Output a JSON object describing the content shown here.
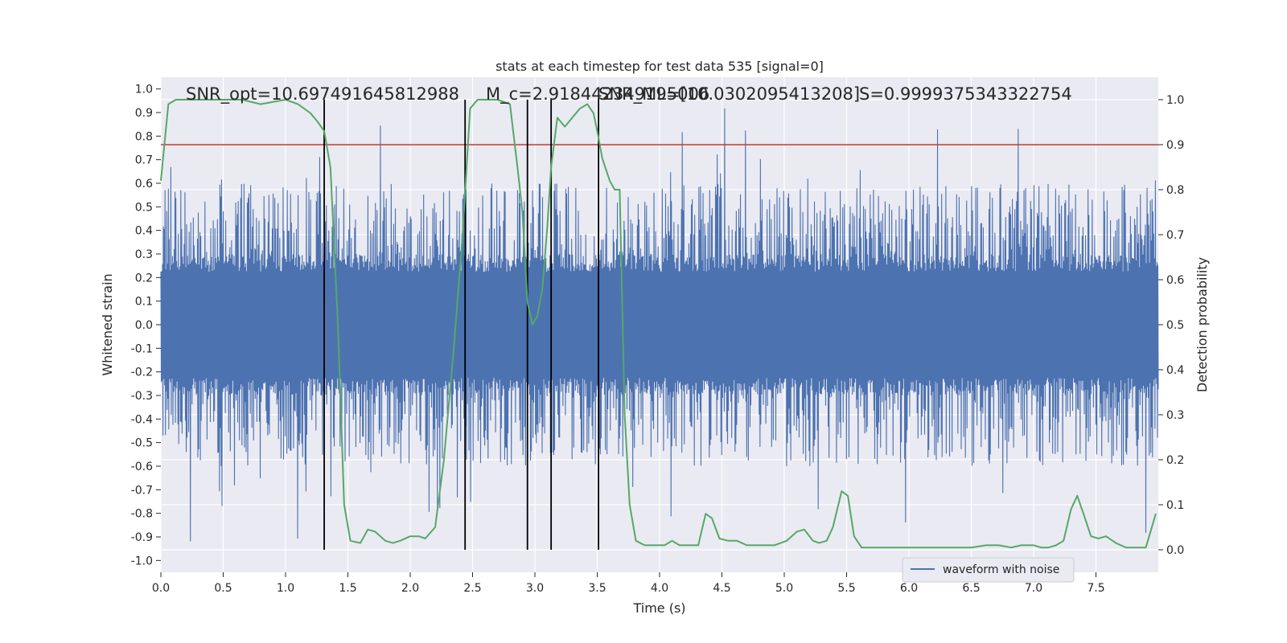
{
  "chart_data": {
    "type": "line",
    "title": "stats at each timestep for test data 535 [signal=0]",
    "xlabel": "Time (s)",
    "ylabel_left": "Whitened strain",
    "ylabel_right": "Detection probability",
    "xlim": [
      0,
      8
    ],
    "ylim_left": [
      -1.05,
      1.05
    ],
    "ylim_right": [
      -0.05,
      1.05
    ],
    "x_ticks": [
      "0.0",
      "0.5",
      "1.0",
      "1.5",
      "2.0",
      "2.5",
      "3.0",
      "3.5",
      "4.0",
      "4.5",
      "5.0",
      "5.5",
      "6.0",
      "6.5",
      "7.0",
      "7.5"
    ],
    "y_ticks_left": [
      "-1.0",
      "-0.9",
      "-0.8",
      "-0.7",
      "-0.6",
      "-0.5",
      "-0.4",
      "-0.3",
      "-0.2",
      "-0.1",
      "0.0",
      "0.1",
      "0.2",
      "0.3",
      "0.4",
      "0.5",
      "0.6",
      "0.7",
      "0.8",
      "0.9",
      "1.0"
    ],
    "y_ticks_right": [
      "0.0",
      "0.1",
      "0.2",
      "0.3",
      "0.4",
      "0.5",
      "0.6",
      "0.7",
      "0.8",
      "0.9",
      "1.0"
    ],
    "grid": true,
    "annotations": [
      "SNR_opt=10.697491645812988",
      "M_c=2.918442349195006",
      "SNR_ML=[10.0302095413208]",
      "S=0.9999375343322754"
    ],
    "threshold": {
      "value": 0.9,
      "axis": "right",
      "color": "#c0392b"
    },
    "vertical_lines": [
      1.31,
      2.44,
      2.94,
      3.13,
      3.51
    ],
    "series": [
      {
        "name": "waveform with noise",
        "axis": "left",
        "color": "#4c72b0",
        "envelope": {
          "core_amplitude": 0.3,
          "typical_peak_amplitude": 0.6,
          "max_peak_amplitude": 0.92
        }
      },
      {
        "axis": "right",
        "color": "#55a868",
        "x": [
          0.0,
          0.06,
          0.12,
          0.25,
          0.5,
          0.65,
          0.8,
          1.0,
          1.1,
          1.2,
          1.26,
          1.31,
          1.36,
          1.42,
          1.47,
          1.52,
          1.6,
          1.66,
          1.72,
          1.8,
          1.86,
          1.92,
          2.0,
          2.07,
          2.12,
          2.2,
          2.27,
          2.35,
          2.42,
          2.48,
          2.54,
          2.6,
          2.7,
          2.8,
          2.86,
          2.9,
          2.94,
          2.98,
          3.02,
          3.06,
          3.1,
          3.13,
          3.18,
          3.24,
          3.3,
          3.36,
          3.42,
          3.47,
          3.5,
          3.54,
          3.6,
          3.64,
          3.68,
          3.72,
          3.76,
          3.81,
          3.88,
          3.96,
          4.04,
          4.1,
          4.16,
          4.24,
          4.31,
          4.37,
          4.42,
          4.48,
          4.55,
          4.62,
          4.7,
          4.8,
          4.92,
          5.02,
          5.1,
          5.16,
          5.23,
          5.28,
          5.34,
          5.39,
          5.46,
          5.51,
          5.56,
          5.62,
          5.8,
          6.0,
          6.3,
          6.5,
          6.62,
          6.72,
          6.82,
          6.9,
          7.0,
          7.06,
          7.12,
          7.18,
          7.24,
          7.3,
          7.35,
          7.4,
          7.46,
          7.52,
          7.58,
          7.66,
          7.74,
          7.82,
          7.9,
          7.98
        ],
        "values": [
          0.82,
          0.99,
          1.0,
          1.0,
          1.0,
          1.0,
          0.99,
          1.0,
          0.99,
          0.97,
          0.95,
          0.93,
          0.85,
          0.5,
          0.1,
          0.02,
          0.015,
          0.045,
          0.04,
          0.02,
          0.015,
          0.02,
          0.03,
          0.03,
          0.025,
          0.05,
          0.2,
          0.45,
          0.7,
          0.98,
          1.0,
          1.0,
          1.0,
          0.99,
          0.85,
          0.75,
          0.55,
          0.5,
          0.52,
          0.58,
          0.72,
          0.85,
          0.96,
          0.94,
          0.96,
          0.98,
          0.99,
          0.97,
          0.93,
          0.87,
          0.82,
          0.8,
          0.8,
          0.3,
          0.1,
          0.02,
          0.01,
          0.01,
          0.01,
          0.02,
          0.01,
          0.01,
          0.01,
          0.08,
          0.07,
          0.025,
          0.02,
          0.02,
          0.01,
          0.01,
          0.01,
          0.02,
          0.04,
          0.045,
          0.02,
          0.015,
          0.02,
          0.05,
          0.13,
          0.12,
          0.03,
          0.005,
          0.005,
          0.005,
          0.005,
          0.005,
          0.01,
          0.01,
          0.005,
          0.01,
          0.01,
          0.005,
          0.005,
          0.01,
          0.02,
          0.09,
          0.12,
          0.08,
          0.03,
          0.025,
          0.03,
          0.015,
          0.005,
          0.005,
          0.005,
          0.08
        ]
      }
    ]
  }
}
